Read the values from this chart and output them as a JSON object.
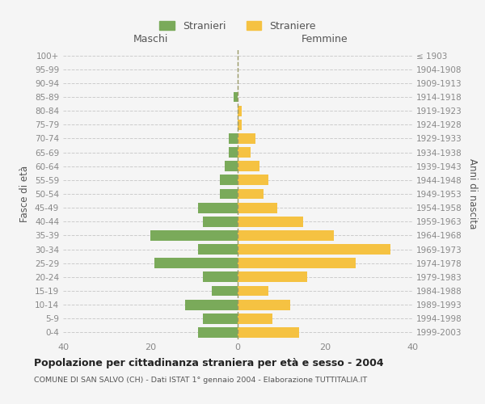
{
  "age_groups": [
    "0-4",
    "5-9",
    "10-14",
    "15-19",
    "20-24",
    "25-29",
    "30-34",
    "35-39",
    "40-44",
    "45-49",
    "50-54",
    "55-59",
    "60-64",
    "65-69",
    "70-74",
    "75-79",
    "80-84",
    "85-89",
    "90-94",
    "95-99",
    "100+"
  ],
  "birth_years": [
    "1999-2003",
    "1994-1998",
    "1989-1993",
    "1984-1988",
    "1979-1983",
    "1974-1978",
    "1969-1973",
    "1964-1968",
    "1959-1963",
    "1954-1958",
    "1949-1953",
    "1944-1948",
    "1939-1943",
    "1934-1938",
    "1929-1933",
    "1924-1928",
    "1919-1923",
    "1914-1918",
    "1909-1913",
    "1904-1908",
    "≤ 1903"
  ],
  "maschi": [
    9,
    8,
    12,
    6,
    8,
    19,
    9,
    20,
    8,
    9,
    4,
    4,
    3,
    2,
    2,
    0,
    0,
    1,
    0,
    0,
    0
  ],
  "femmine": [
    14,
    8,
    12,
    7,
    16,
    27,
    35,
    22,
    15,
    9,
    6,
    7,
    5,
    3,
    4,
    1,
    1,
    0,
    0,
    0,
    0
  ],
  "color_maschi": "#7aaa5a",
  "color_femmine": "#f5c242",
  "background_color": "#f5f5f5",
  "title": "Popolazione per cittadinanza straniera per età e sesso - 2004",
  "subtitle": "COMUNE DI SAN SALVO (CH) - Dati ISTAT 1° gennaio 2004 - Elaborazione TUTTITALIA.IT",
  "xlabel_left": "Maschi",
  "xlabel_right": "Femmine",
  "ylabel_left": "Fasce di età",
  "ylabel_right": "Anni di nascita",
  "xlim": 40,
  "legend_stranieri": "Stranieri",
  "legend_straniere": "Straniere"
}
